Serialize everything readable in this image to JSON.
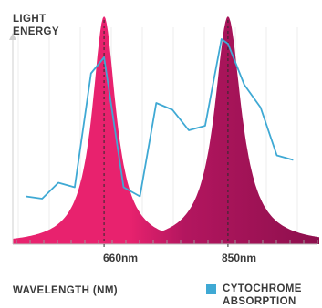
{
  "chart_data": {
    "type": "area",
    "y_title_line1": "LIGHT",
    "y_title_line2": "ENERGY",
    "xlabel": "WAVELENGTH (NM)",
    "peak_labels": [
      "660nm",
      "850nm"
    ],
    "peaks_nm": [
      660,
      850
    ],
    "light_energy": {
      "description_color_660": "#e8226e",
      "description_color_850": "#9a1152"
    },
    "legend": {
      "label_line1": "CYTOCHROME",
      "label_line2": "ABSORPTION",
      "color": "#3fa9d4"
    },
    "series": [
      {
        "name": "CYTOCHROME ABSORPTION",
        "color": "#3fa9d4",
        "x": [
          540,
          565,
          590,
          615,
          640,
          660,
          690,
          715,
          740,
          765,
          790,
          815,
          840,
          850,
          875,
          900,
          925,
          950
        ],
        "y": [
          0.21,
          0.2,
          0.27,
          0.25,
          0.75,
          0.82,
          0.25,
          0.21,
          0.62,
          0.59,
          0.5,
          0.52,
          0.9,
          0.88,
          0.7,
          0.6,
          0.39,
          0.37
        ]
      }
    ],
    "xlim": [
      520,
      990
    ],
    "ylim": [
      0,
      1
    ]
  }
}
